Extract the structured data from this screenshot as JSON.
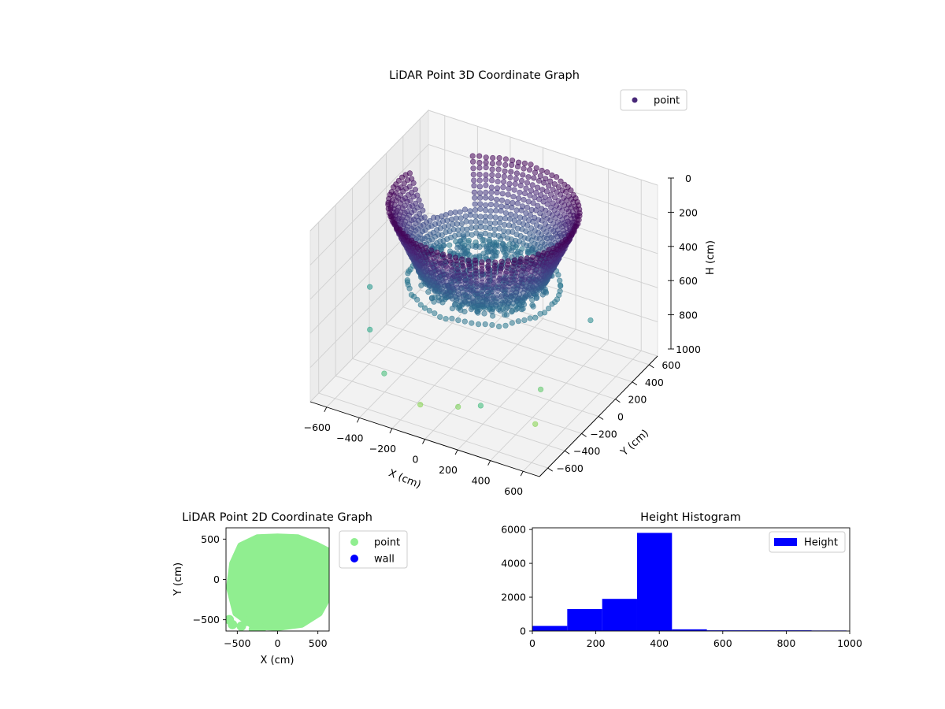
{
  "chart_data": [
    {
      "type": "scatter",
      "title": "LiDAR Point 3D Coordinate Graph",
      "xlabel": "X (cm)",
      "ylabel": "Y (cm)",
      "zlabel": "H (cm)",
      "xlim": [
        -700,
        700
      ],
      "ylim": [
        -700,
        700
      ],
      "zlim": [
        1000,
        0
      ],
      "x_ticks": [
        "−600",
        "−400",
        "−200",
        "0",
        "200",
        "400",
        "600"
      ],
      "y_ticks": [
        "−600",
        "−400",
        "−200",
        "0",
        "200",
        "400",
        "600"
      ],
      "z_ticks": [
        "0",
        "200",
        "400",
        "600",
        "800",
        "1000"
      ],
      "legend": [
        "point"
      ],
      "legend_position": "top-right",
      "colormap": "viridis",
      "grid": true,
      "colors": {
        "marker": "#482878"
      },
      "series": [
        {
          "name": "point",
          "shape": "bowl-shaped ring of points",
          "rim_radius_cm": 520,
          "rim_height_cm": [
            0,
            300
          ],
          "floor_height_cm": [
            380,
            420
          ],
          "scattered_outliers": [
            {
              "x": -620,
              "y": -150,
              "h": 580
            },
            {
              "x": -500,
              "y": 300,
              "h": 700
            },
            {
              "x": -480,
              "y": -420,
              "h": 650
            },
            {
              "x": -300,
              "y": -600,
              "h": 760
            },
            {
              "x": 300,
              "y": -620,
              "h": 750
            },
            {
              "x": 520,
              "y": -400,
              "h": 900
            },
            {
              "x": 600,
              "y": 100,
              "h": 520
            },
            {
              "x": 100,
              "y": -500,
              "h": 880
            },
            {
              "x": -100,
              "y": -560,
              "h": 900
            },
            {
              "x": 450,
              "y": -200,
              "h": 820
            }
          ]
        }
      ]
    },
    {
      "type": "scatter",
      "title": "LiDAR Point 2D Coordinate Graph",
      "xlabel": "X (cm)",
      "ylabel": "Y (cm)",
      "xlim": [
        -640,
        640
      ],
      "ylim": [
        -640,
        640
      ],
      "x_ticks": [
        "−500",
        "0",
        "500"
      ],
      "y_ticks": [
        "500",
        "0",
        "−500"
      ],
      "legend": [
        "point",
        "wall"
      ],
      "legend_position": "outside-right",
      "colors": {
        "point": "#90ee90",
        "wall": "#0000ff"
      },
      "series": [
        {
          "name": "point",
          "outline": [
            [
              -560,
              200
            ],
            [
              -460,
              420
            ],
            [
              -250,
              520
            ],
            [
              0,
              530
            ],
            [
              250,
              520
            ],
            [
              480,
              430
            ],
            [
              640,
              350
            ],
            [
              640,
              -200
            ],
            [
              520,
              -420
            ],
            [
              300,
              -560
            ],
            [
              0,
              -600
            ],
            [
              -300,
              -580
            ],
            [
              -520,
              -420
            ],
            [
              -600,
              -100
            ]
          ],
          "extra_points": [
            [
              -600,
              -500
            ],
            [
              -560,
              -560
            ],
            [
              -450,
              -580
            ],
            [
              -380,
              -520
            ],
            [
              -300,
              -620
            ],
            [
              -200,
              -610
            ]
          ]
        },
        {
          "name": "wall",
          "points": []
        }
      ]
    },
    {
      "type": "bar",
      "title": "Height Histogram",
      "xlabel": "",
      "ylabel": "",
      "xlim": [
        0,
        1000
      ],
      "ylim": [
        0,
        6100
      ],
      "x_ticks": [
        "0",
        "200",
        "400",
        "600",
        "800",
        "1000"
      ],
      "y_ticks": [
        "0",
        "2000",
        "4000",
        "6000"
      ],
      "legend": [
        "Height"
      ],
      "legend_position": "top-right",
      "colors": {
        "bars": "#0000ff"
      },
      "bins": [
        [
          0,
          110
        ],
        [
          110,
          220
        ],
        [
          220,
          330
        ],
        [
          330,
          440
        ],
        [
          440,
          550
        ],
        [
          550,
          660
        ],
        [
          660,
          770
        ],
        [
          770,
          880
        ],
        [
          880,
          990
        ]
      ],
      "values": [
        300,
        1300,
        1900,
        5800,
        100,
        40,
        40,
        40,
        30
      ]
    }
  ]
}
